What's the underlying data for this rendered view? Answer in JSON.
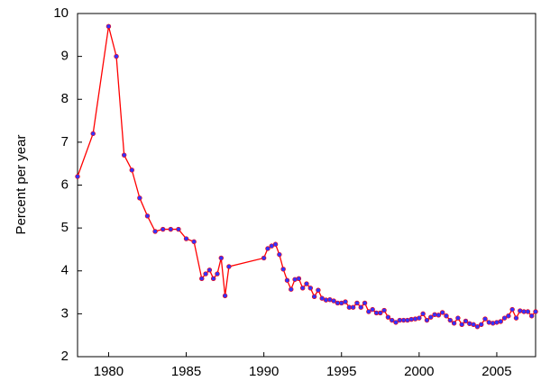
{
  "chart_data": {
    "type": "line",
    "y_label": "Percent per year",
    "x": [
      1978,
      1979,
      1980,
      1980.5,
      1981,
      1981.5,
      1982,
      1982.5,
      1983,
      1983.5,
      1984,
      1984.5,
      1985,
      1985.5,
      1986,
      1986.25,
      1986.5,
      1986.75,
      1987,
      1987.25,
      1987.5,
      1987.75,
      1990,
      1990.25,
      1990.5,
      1990.75,
      1991,
      1991.25,
      1991.5,
      1991.75,
      1992,
      1992.25,
      1992.5,
      1992.75,
      1993,
      1993.25,
      1993.5,
      1993.75,
      1994,
      1994.25,
      1994.5,
      1994.75,
      1995,
      1995.25,
      1995.5,
      1995.75,
      1996,
      1996.25,
      1996.5,
      1996.75,
      1997,
      1997.25,
      1997.5,
      1997.75,
      1998,
      1998.25,
      1998.5,
      1998.75,
      1999,
      1999.25,
      1999.5,
      1999.75,
      2000,
      2000.25,
      2000.5,
      2000.75,
      2001,
      2001.25,
      2001.5,
      2001.75,
      2002,
      2002.25,
      2002.5,
      2002.75,
      2003,
      2003.25,
      2003.5,
      2003.75,
      2004,
      2004.25,
      2004.5,
      2004.75,
      2005,
      2005.25,
      2005.5,
      2005.75,
      2006,
      2006.25,
      2006.5,
      2006.75,
      2007,
      2007.25,
      2007.5
    ],
    "series": [
      {
        "line_color": "#ff0000",
        "color": "#3333ff",
        "values": [
          6.2,
          7.2,
          9.7,
          9.0,
          6.7,
          6.35,
          5.7,
          5.28,
          4.92,
          4.97,
          4.97,
          4.97,
          4.75,
          4.68,
          3.82,
          3.93,
          4.02,
          3.82,
          3.93,
          4.3,
          3.42,
          4.1,
          4.3,
          4.52,
          4.58,
          4.62,
          4.38,
          4.04,
          3.78,
          3.57,
          3.8,
          3.82,
          3.6,
          3.7,
          3.6,
          3.4,
          3.55,
          3.36,
          3.32,
          3.33,
          3.3,
          3.25,
          3.25,
          3.28,
          3.15,
          3.15,
          3.25,
          3.15,
          3.25,
          3.05,
          3.1,
          3.02,
          3.02,
          3.08,
          2.92,
          2.85,
          2.8,
          2.85,
          2.85,
          2.85,
          2.87,
          2.88,
          2.9,
          3.0,
          2.85,
          2.92,
          2.98,
          2.97,
          3.03,
          2.95,
          2.85,
          2.78,
          2.9,
          2.75,
          2.83,
          2.77,
          2.75,
          2.7,
          2.75,
          2.88,
          2.8,
          2.78,
          2.8,
          2.82,
          2.9,
          2.95,
          3.1,
          2.9,
          3.07,
          3.05,
          3.05,
          2.95,
          3.05
        ]
      }
    ],
    "xlim": [
      1978,
      2007.5
    ],
    "xticks": [
      1980,
      1985,
      1990,
      1995,
      2000,
      2005
    ],
    "ylim": [
      2,
      10
    ],
    "yticks": [
      2,
      3,
      4,
      5,
      6,
      7,
      8,
      9,
      10
    ]
  }
}
